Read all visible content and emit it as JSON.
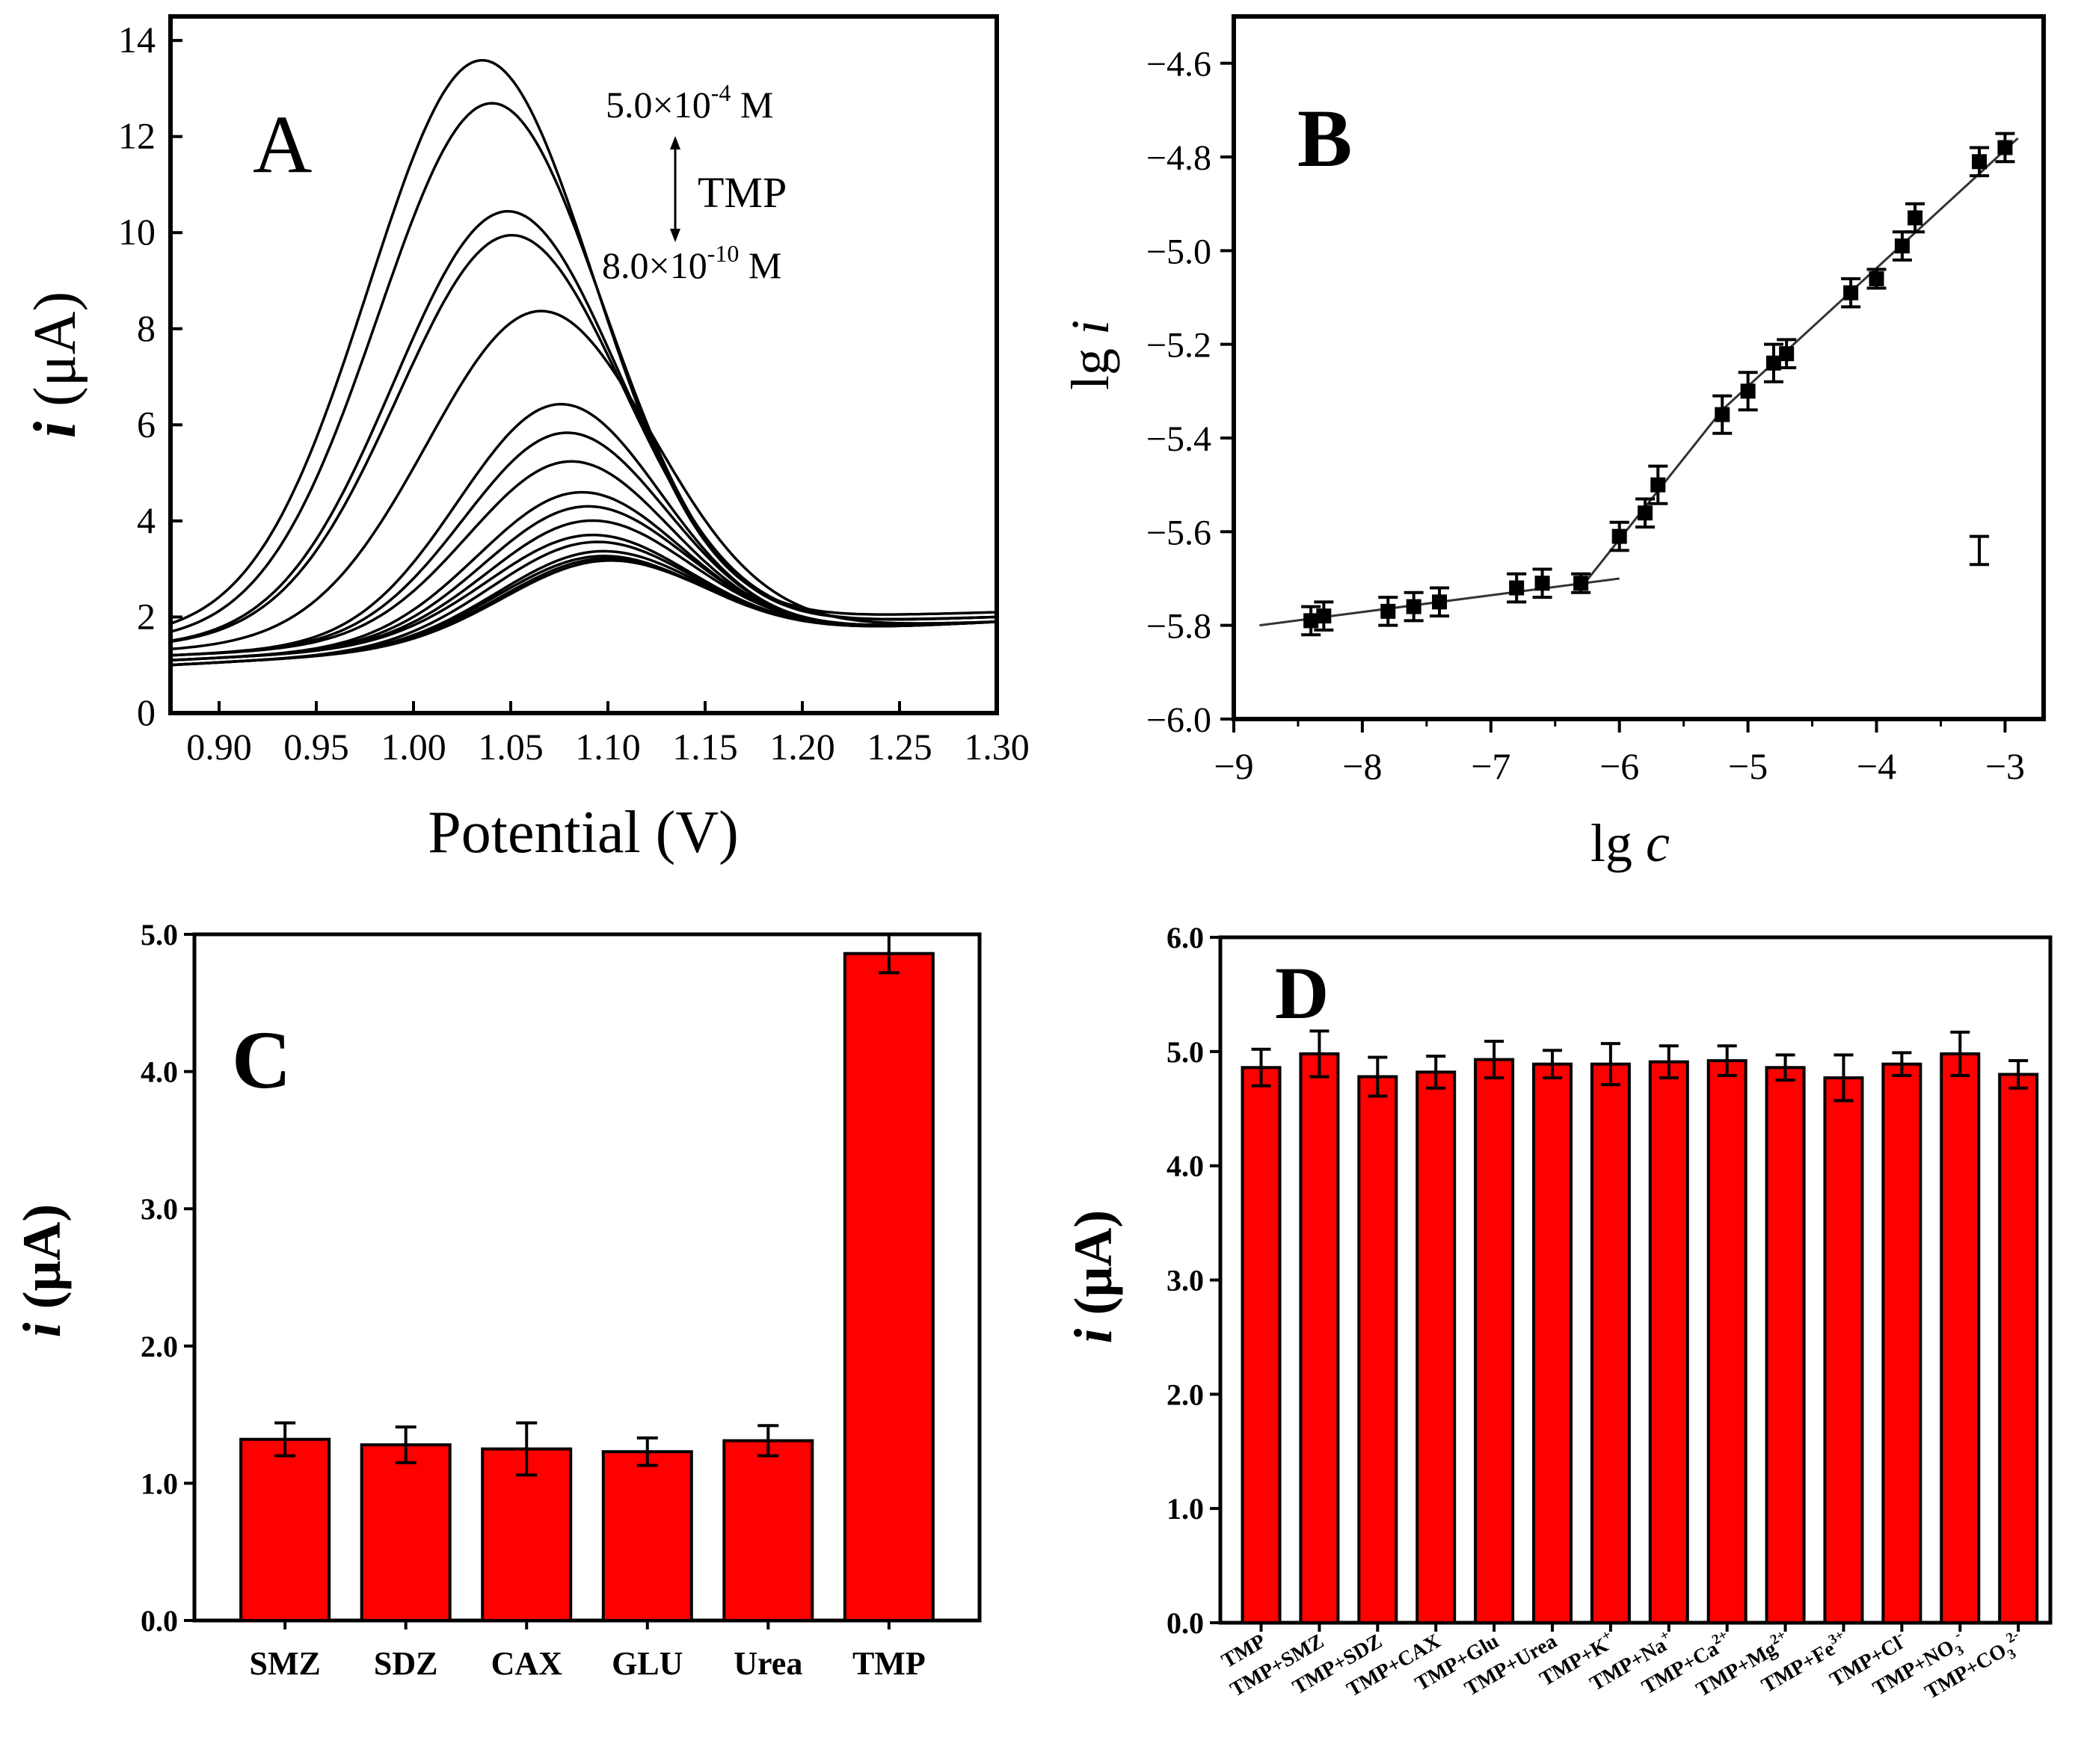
{
  "chart_data": [
    {
      "panel": "A",
      "type": "line",
      "panel_label": "A",
      "xlabel": "Potential (V)",
      "ylabel_italic": "i",
      "ylabel_unit": " (μA)",
      "xlim": [
        0.875,
        1.3
      ],
      "ylim": [
        0,
        14.5
      ],
      "xticks": [
        "0.90",
        "0.95",
        "1.00",
        "1.05",
        "1.10",
        "1.15",
        "1.20",
        "1.25",
        "1.30"
      ],
      "yticks": [
        "0",
        "2",
        "4",
        "6",
        "8",
        "10",
        "12",
        "14"
      ],
      "annotation_top_base": "5.0×10",
      "annotation_top_exp": "-4",
      "annotation_top_unit": " M",
      "annotation_mid": "TMP",
      "annotation_bottom_base": "8.0×10",
      "annotation_bottom_exp": "-10",
      "annotation_bottom_unit": " M",
      "series": [
        {
          "peak_x": 1.035,
          "peak_y": 13.4,
          "baseline": 1.6,
          "end": 2.1
        },
        {
          "peak_x": 1.04,
          "peak_y": 12.5,
          "baseline": 1.5,
          "end": 2.0
        },
        {
          "peak_x": 1.048,
          "peak_y": 10.2,
          "baseline": 1.4,
          "end": 2.0
        },
        {
          "peak_x": 1.05,
          "peak_y": 9.7,
          "baseline": 1.4,
          "end": 2.0
        },
        {
          "peak_x": 1.065,
          "peak_y": 8.1,
          "baseline": 1.3,
          "end": 1.9
        },
        {
          "peak_x": 1.075,
          "peak_y": 6.1,
          "baseline": 1.2,
          "end": 1.9
        },
        {
          "peak_x": 1.078,
          "peak_y": 5.5,
          "baseline": 1.2,
          "end": 1.9
        },
        {
          "peak_x": 1.08,
          "peak_y": 4.9,
          "baseline": 1.2,
          "end": 1.9
        },
        {
          "peak_x": 1.085,
          "peak_y": 4.2,
          "baseline": 1.1,
          "end": 1.9
        },
        {
          "peak_x": 1.088,
          "peak_y": 3.9,
          "baseline": 1.1,
          "end": 1.9
        },
        {
          "peak_x": 1.09,
          "peak_y": 3.6,
          "baseline": 1.1,
          "end": 1.9
        },
        {
          "peak_x": 1.09,
          "peak_y": 3.3,
          "baseline": 1.1,
          "end": 1.9
        },
        {
          "peak_x": 1.092,
          "peak_y": 3.1,
          "baseline": 1.0,
          "end": 1.9
        },
        {
          "peak_x": 1.095,
          "peak_y": 2.9,
          "baseline": 1.0,
          "end": 1.9
        },
        {
          "peak_x": 1.095,
          "peak_y": 2.8,
          "baseline": 1.0,
          "end": 1.9
        },
        {
          "peak_x": 1.097,
          "peak_y": 2.75,
          "baseline": 1.0,
          "end": 1.9
        },
        {
          "peak_x": 1.098,
          "peak_y": 2.7,
          "baseline": 1.0,
          "end": 1.9
        }
      ]
    },
    {
      "panel": "B",
      "type": "scatter",
      "panel_label": "B",
      "xlabel_base": "lg ",
      "xlabel_italic": "c",
      "ylabel_base": "lg ",
      "ylabel_italic": "i",
      "xlim": [
        -9,
        -2.7
      ],
      "ylim": [
        -6.0,
        -4.5
      ],
      "xticks": [
        "−9",
        "−8",
        "−7",
        "−6",
        "−5",
        "−4",
        "−3"
      ],
      "yticks": [
        "−6.0",
        "−5.8",
        "−5.6",
        "−5.4",
        "−5.2",
        "−5.0",
        "−4.8",
        "−4.6"
      ],
      "points": [
        {
          "x": -8.4,
          "y": -5.79,
          "err": 0.03
        },
        {
          "x": -8.3,
          "y": -5.78,
          "err": 0.03
        },
        {
          "x": -7.8,
          "y": -5.77,
          "err": 0.03
        },
        {
          "x": -7.6,
          "y": -5.76,
          "err": 0.03
        },
        {
          "x": -7.4,
          "y": -5.75,
          "err": 0.03
        },
        {
          "x": -6.8,
          "y": -5.72,
          "err": 0.03
        },
        {
          "x": -6.6,
          "y": -5.71,
          "err": 0.03
        },
        {
          "x": -6.3,
          "y": -5.71,
          "err": 0.02
        },
        {
          "x": -6.0,
          "y": -5.61,
          "err": 0.03
        },
        {
          "x": -5.8,
          "y": -5.56,
          "err": 0.03
        },
        {
          "x": -5.7,
          "y": -5.5,
          "err": 0.04
        },
        {
          "x": -5.2,
          "y": -5.35,
          "err": 0.04
        },
        {
          "x": -5.0,
          "y": -5.3,
          "err": 0.04
        },
        {
          "x": -4.8,
          "y": -5.24,
          "err": 0.04
        },
        {
          "x": -4.7,
          "y": -5.22,
          "err": 0.03
        },
        {
          "x": -4.2,
          "y": -5.09,
          "err": 0.03
        },
        {
          "x": -4.0,
          "y": -5.06,
          "err": 0.02
        },
        {
          "x": -3.8,
          "y": -4.99,
          "err": 0.03
        },
        {
          "x": -3.7,
          "y": -4.93,
          "err": 0.03
        },
        {
          "x": -3.2,
          "y": -4.81,
          "err": 0.03
        },
        {
          "x": -3.0,
          "y": -4.78,
          "err": 0.03
        }
      ],
      "fit_lines": [
        {
          "x1": -8.8,
          "y1": -5.8,
          "x2": -6.0,
          "y2": -5.7
        },
        {
          "x1": -6.3,
          "y1": -5.72,
          "x2": -5.2,
          "y2": -5.34
        },
        {
          "x1": -5.2,
          "y1": -5.34,
          "x2": -2.9,
          "y2": -4.76
        }
      ],
      "legend_errorbar": {
        "x": -3.2,
        "y": -5.64,
        "err": 0.03
      }
    },
    {
      "panel": "C",
      "type": "bar",
      "panel_label": "C",
      "ylabel_italic": "i",
      "ylabel_unit": " (μA)",
      "ylim": [
        0,
        5.0
      ],
      "yticks": [
        "0.0",
        "1.0",
        "2.0",
        "3.0",
        "4.0",
        "5.0"
      ],
      "categories": [
        "SMZ",
        "SDZ",
        "CAX",
        "GLU",
        "Urea",
        "TMP"
      ],
      "values": [
        1.32,
        1.28,
        1.25,
        1.23,
        1.31,
        4.86
      ],
      "errors": [
        0.12,
        0.13,
        0.19,
        0.1,
        0.11,
        0.14
      ],
      "bar_color": "#ff0000"
    },
    {
      "panel": "D",
      "type": "bar",
      "panel_label": "D",
      "ylabel_italic": "i",
      "ylabel_unit": " (μA)",
      "ylim": [
        0,
        6.0
      ],
      "yticks": [
        "0.0",
        "1.0",
        "2.0",
        "3.0",
        "4.0",
        "5.0",
        "6.0"
      ],
      "categories": [
        {
          "base": "TMP",
          "sup": "",
          "sub": ""
        },
        {
          "base": "TMP+SMZ",
          "sup": "",
          "sub": ""
        },
        {
          "base": "TMP+SDZ",
          "sup": "",
          "sub": ""
        },
        {
          "base": "TMP+CAX",
          "sup": "",
          "sub": ""
        },
        {
          "base": "TMP+Glu",
          "sup": "",
          "sub": ""
        },
        {
          "base": "TMP+Urea",
          "sup": "",
          "sub": ""
        },
        {
          "base": "TMP+K",
          "sup": "+",
          "sub": ""
        },
        {
          "base": "TMP+Na",
          "sup": "+",
          "sub": ""
        },
        {
          "base": "TMP+Ca",
          "sup": "2+",
          "sub": ""
        },
        {
          "base": "TMP+Mg",
          "sup": "2+",
          "sub": ""
        },
        {
          "base": "TMP+Fe",
          "sup": "3+",
          "sub": ""
        },
        {
          "base": "TMP+Cl",
          "sup": "-",
          "sub": ""
        },
        {
          "base": "TMP+NO",
          "sup": "-",
          "sub": "3"
        },
        {
          "base": "TMP+CO",
          "sup": "2-",
          "sub": "3"
        }
      ],
      "values": [
        4.86,
        4.98,
        4.78,
        4.82,
        4.93,
        4.89,
        4.89,
        4.91,
        4.92,
        4.86,
        4.77,
        4.89,
        4.98,
        4.8
      ],
      "errors": [
        0.16,
        0.2,
        0.17,
        0.14,
        0.16,
        0.12,
        0.18,
        0.14,
        0.13,
        0.11,
        0.2,
        0.1,
        0.19,
        0.12
      ],
      "bar_color": "#ff0000"
    }
  ]
}
